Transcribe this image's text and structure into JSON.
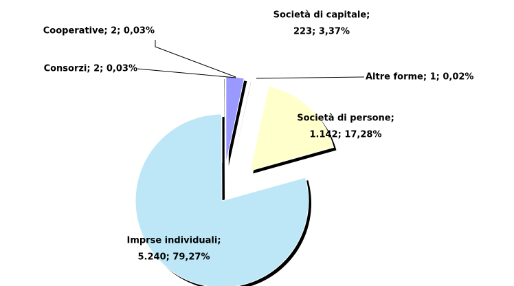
{
  "chart_data": {
    "type": "pie",
    "values": [
      223,
      1,
      1142,
      5240,
      2,
      2
    ],
    "value_labels": [
      [
        "Società di capitale;",
        "223; 3,37%"
      ],
      [
        "Altre forme; 1; 0,02%"
      ],
      [
        "Società di persone;",
        "1.142; 17,28%"
      ],
      [
        "Imprse individuali;",
        "5.240; 79,27%"
      ],
      [
        "Consorzi; 2; 0,03%"
      ],
      [
        "Cooperative; 2; 0,03%"
      ]
    ],
    "colors": [
      "#9999ff",
      "#d9f1fb",
      "#ffffcc",
      "#bde7f7",
      "#bde7f7",
      "#d9f1fb"
    ]
  }
}
